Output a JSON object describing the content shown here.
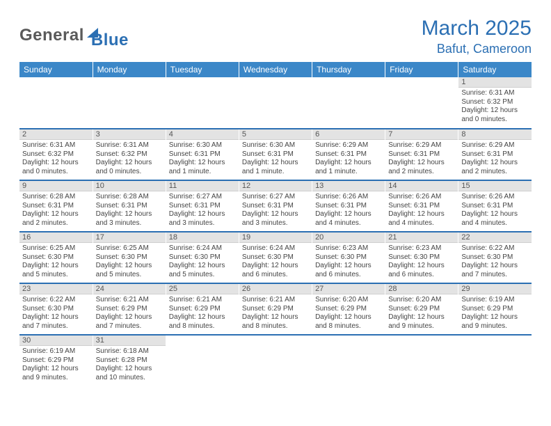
{
  "logo": {
    "text1": "General",
    "text2": "Blue"
  },
  "title": "March 2025",
  "location": "Bafut, Cameroon",
  "colors": {
    "header_bg": "#3b87c8",
    "accent": "#2b6fb3",
    "daynum_bg": "#e3e3e3",
    "text": "#444444",
    "logo_gray": "#5a5a5a"
  },
  "weekdays": [
    "Sunday",
    "Monday",
    "Tuesday",
    "Wednesday",
    "Thursday",
    "Friday",
    "Saturday"
  ],
  "weeks": [
    [
      {
        "day": "",
        "sunrise": "",
        "sunset": "",
        "daylight": ""
      },
      {
        "day": "",
        "sunrise": "",
        "sunset": "",
        "daylight": ""
      },
      {
        "day": "",
        "sunrise": "",
        "sunset": "",
        "daylight": ""
      },
      {
        "day": "",
        "sunrise": "",
        "sunset": "",
        "daylight": ""
      },
      {
        "day": "",
        "sunrise": "",
        "sunset": "",
        "daylight": ""
      },
      {
        "day": "",
        "sunrise": "",
        "sunset": "",
        "daylight": ""
      },
      {
        "day": "1",
        "sunrise": "Sunrise: 6:31 AM",
        "sunset": "Sunset: 6:32 PM",
        "daylight": "Daylight: 12 hours and 0 minutes."
      }
    ],
    [
      {
        "day": "2",
        "sunrise": "Sunrise: 6:31 AM",
        "sunset": "Sunset: 6:32 PM",
        "daylight": "Daylight: 12 hours and 0 minutes."
      },
      {
        "day": "3",
        "sunrise": "Sunrise: 6:31 AM",
        "sunset": "Sunset: 6:32 PM",
        "daylight": "Daylight: 12 hours and 0 minutes."
      },
      {
        "day": "4",
        "sunrise": "Sunrise: 6:30 AM",
        "sunset": "Sunset: 6:31 PM",
        "daylight": "Daylight: 12 hours and 1 minute."
      },
      {
        "day": "5",
        "sunrise": "Sunrise: 6:30 AM",
        "sunset": "Sunset: 6:31 PM",
        "daylight": "Daylight: 12 hours and 1 minute."
      },
      {
        "day": "6",
        "sunrise": "Sunrise: 6:29 AM",
        "sunset": "Sunset: 6:31 PM",
        "daylight": "Daylight: 12 hours and 1 minute."
      },
      {
        "day": "7",
        "sunrise": "Sunrise: 6:29 AM",
        "sunset": "Sunset: 6:31 PM",
        "daylight": "Daylight: 12 hours and 2 minutes."
      },
      {
        "day": "8",
        "sunrise": "Sunrise: 6:29 AM",
        "sunset": "Sunset: 6:31 PM",
        "daylight": "Daylight: 12 hours and 2 minutes."
      }
    ],
    [
      {
        "day": "9",
        "sunrise": "Sunrise: 6:28 AM",
        "sunset": "Sunset: 6:31 PM",
        "daylight": "Daylight: 12 hours and 2 minutes."
      },
      {
        "day": "10",
        "sunrise": "Sunrise: 6:28 AM",
        "sunset": "Sunset: 6:31 PM",
        "daylight": "Daylight: 12 hours and 3 minutes."
      },
      {
        "day": "11",
        "sunrise": "Sunrise: 6:27 AM",
        "sunset": "Sunset: 6:31 PM",
        "daylight": "Daylight: 12 hours and 3 minutes."
      },
      {
        "day": "12",
        "sunrise": "Sunrise: 6:27 AM",
        "sunset": "Sunset: 6:31 PM",
        "daylight": "Daylight: 12 hours and 3 minutes."
      },
      {
        "day": "13",
        "sunrise": "Sunrise: 6:26 AM",
        "sunset": "Sunset: 6:31 PM",
        "daylight": "Daylight: 12 hours and 4 minutes."
      },
      {
        "day": "14",
        "sunrise": "Sunrise: 6:26 AM",
        "sunset": "Sunset: 6:31 PM",
        "daylight": "Daylight: 12 hours and 4 minutes."
      },
      {
        "day": "15",
        "sunrise": "Sunrise: 6:26 AM",
        "sunset": "Sunset: 6:31 PM",
        "daylight": "Daylight: 12 hours and 4 minutes."
      }
    ],
    [
      {
        "day": "16",
        "sunrise": "Sunrise: 6:25 AM",
        "sunset": "Sunset: 6:30 PM",
        "daylight": "Daylight: 12 hours and 5 minutes."
      },
      {
        "day": "17",
        "sunrise": "Sunrise: 6:25 AM",
        "sunset": "Sunset: 6:30 PM",
        "daylight": "Daylight: 12 hours and 5 minutes."
      },
      {
        "day": "18",
        "sunrise": "Sunrise: 6:24 AM",
        "sunset": "Sunset: 6:30 PM",
        "daylight": "Daylight: 12 hours and 5 minutes."
      },
      {
        "day": "19",
        "sunrise": "Sunrise: 6:24 AM",
        "sunset": "Sunset: 6:30 PM",
        "daylight": "Daylight: 12 hours and 6 minutes."
      },
      {
        "day": "20",
        "sunrise": "Sunrise: 6:23 AM",
        "sunset": "Sunset: 6:30 PM",
        "daylight": "Daylight: 12 hours and 6 minutes."
      },
      {
        "day": "21",
        "sunrise": "Sunrise: 6:23 AM",
        "sunset": "Sunset: 6:30 PM",
        "daylight": "Daylight: 12 hours and 6 minutes."
      },
      {
        "day": "22",
        "sunrise": "Sunrise: 6:22 AM",
        "sunset": "Sunset: 6:30 PM",
        "daylight": "Daylight: 12 hours and 7 minutes."
      }
    ],
    [
      {
        "day": "23",
        "sunrise": "Sunrise: 6:22 AM",
        "sunset": "Sunset: 6:30 PM",
        "daylight": "Daylight: 12 hours and 7 minutes."
      },
      {
        "day": "24",
        "sunrise": "Sunrise: 6:21 AM",
        "sunset": "Sunset: 6:29 PM",
        "daylight": "Daylight: 12 hours and 7 minutes."
      },
      {
        "day": "25",
        "sunrise": "Sunrise: 6:21 AM",
        "sunset": "Sunset: 6:29 PM",
        "daylight": "Daylight: 12 hours and 8 minutes."
      },
      {
        "day": "26",
        "sunrise": "Sunrise: 6:21 AM",
        "sunset": "Sunset: 6:29 PM",
        "daylight": "Daylight: 12 hours and 8 minutes."
      },
      {
        "day": "27",
        "sunrise": "Sunrise: 6:20 AM",
        "sunset": "Sunset: 6:29 PM",
        "daylight": "Daylight: 12 hours and 8 minutes."
      },
      {
        "day": "28",
        "sunrise": "Sunrise: 6:20 AM",
        "sunset": "Sunset: 6:29 PM",
        "daylight": "Daylight: 12 hours and 9 minutes."
      },
      {
        "day": "29",
        "sunrise": "Sunrise: 6:19 AM",
        "sunset": "Sunset: 6:29 PM",
        "daylight": "Daylight: 12 hours and 9 minutes."
      }
    ],
    [
      {
        "day": "30",
        "sunrise": "Sunrise: 6:19 AM",
        "sunset": "Sunset: 6:29 PM",
        "daylight": "Daylight: 12 hours and 9 minutes."
      },
      {
        "day": "31",
        "sunrise": "Sunrise: 6:18 AM",
        "sunset": "Sunset: 6:28 PM",
        "daylight": "Daylight: 12 hours and 10 minutes."
      },
      {
        "day": "",
        "sunrise": "",
        "sunset": "",
        "daylight": ""
      },
      {
        "day": "",
        "sunrise": "",
        "sunset": "",
        "daylight": ""
      },
      {
        "day": "",
        "sunrise": "",
        "sunset": "",
        "daylight": ""
      },
      {
        "day": "",
        "sunrise": "",
        "sunset": "",
        "daylight": ""
      },
      {
        "day": "",
        "sunrise": "",
        "sunset": "",
        "daylight": ""
      }
    ]
  ]
}
